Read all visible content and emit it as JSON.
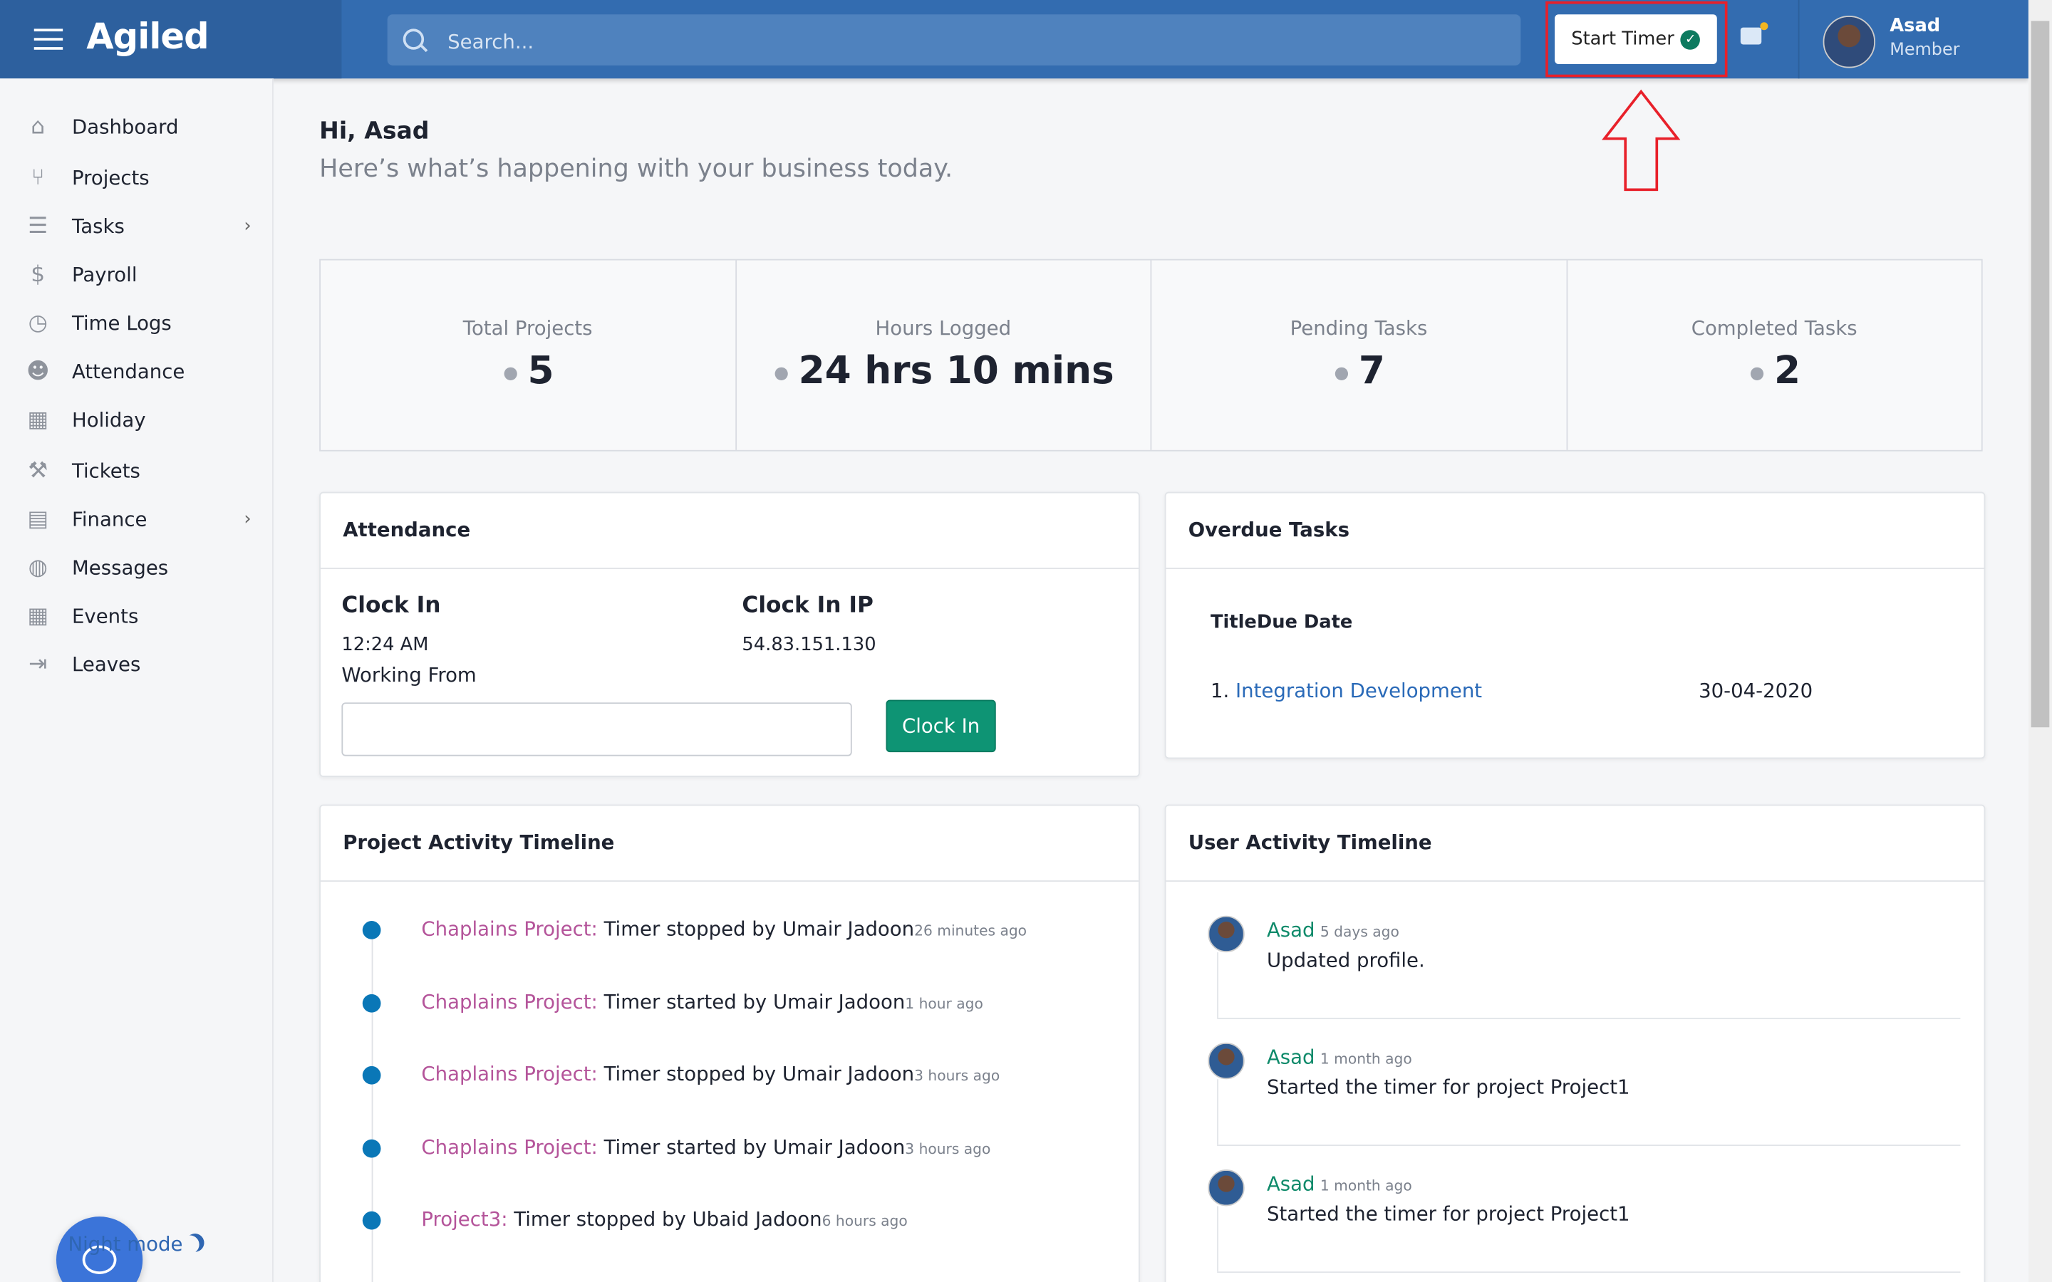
{
  "header": {
    "brand": "Agiled",
    "search_placeholder": "Search...",
    "start_timer": "Start Timer",
    "user_name": "Asad",
    "user_role": "Member"
  },
  "sidebar": {
    "items": [
      {
        "label": "Dashboard",
        "icon": "home-icon"
      },
      {
        "label": "Projects",
        "icon": "git-branch-icon"
      },
      {
        "label": "Tasks",
        "icon": "list-icon",
        "chevron": true
      },
      {
        "label": "Payroll",
        "icon": "dollar-icon"
      },
      {
        "label": "Time Logs",
        "icon": "clock-icon"
      },
      {
        "label": "Attendance",
        "icon": "user-check-icon"
      },
      {
        "label": "Holiday",
        "icon": "calendar-x-icon"
      },
      {
        "label": "Tickets",
        "icon": "wrench-icon"
      },
      {
        "label": "Finance",
        "icon": "file-invoice-icon",
        "chevron": true
      },
      {
        "label": "Messages",
        "icon": "comments-icon"
      },
      {
        "label": "Events",
        "icon": "calendar-icon"
      },
      {
        "label": "Leaves",
        "icon": "sign-out-icon"
      }
    ],
    "night_mode": "Night mode"
  },
  "greeting": {
    "title": "Hi, Asad",
    "subtitle": "Here’s what’s happening with your business today."
  },
  "stats": [
    {
      "label": "Total Projects",
      "value": "5"
    },
    {
      "label": "Hours Logged",
      "value": "24 hrs 10 mins"
    },
    {
      "label": "Pending Tasks",
      "value": "7"
    },
    {
      "label": "Completed Tasks",
      "value": "2"
    }
  ],
  "attendance": {
    "title": "Attendance",
    "clock_in_label": "Clock In",
    "clock_in_time": "12:24 AM",
    "ip_label": "Clock In IP",
    "ip": "54.83.151.130",
    "working_from": "Working From",
    "working_from_value": "",
    "button": "Clock In"
  },
  "overdue": {
    "title": "Overdue Tasks",
    "header": "TitleDue Date",
    "rows": [
      {
        "num": "1.",
        "title": "Integration Development",
        "due": "30-04-2020"
      }
    ]
  },
  "project_timeline": {
    "title": "Project Activity Timeline",
    "items": [
      {
        "project": "Chaplains Project:",
        "text": " Timer stopped by Umair Jadoon",
        "time": "26 minutes ago"
      },
      {
        "project": "Chaplains Project:",
        "text": " Timer started by Umair Jadoon",
        "time": "1 hour ago"
      },
      {
        "project": "Chaplains Project:",
        "text": " Timer stopped by Umair Jadoon",
        "time": "3 hours ago"
      },
      {
        "project": "Chaplains Project:",
        "text": " Timer started by Umair Jadoon",
        "time": "3 hours ago"
      },
      {
        "project": "Project3:",
        "text": " Timer stopped by Ubaid Jadoon",
        "time": "6 hours ago"
      }
    ]
  },
  "user_timeline": {
    "title": "User Activity Timeline",
    "items": [
      {
        "user": "Asad",
        "time": "5 days ago",
        "text": "Updated profile."
      },
      {
        "user": "Asad",
        "time": "1 month ago",
        "text": "Started the timer for project Project1"
      },
      {
        "user": "Asad",
        "time": "1 month ago",
        "text": "Started the timer for project Project1"
      }
    ]
  },
  "colors": {
    "header": "#336cb0",
    "accent_green": "#0e9474",
    "project_link": "#b4549a",
    "highlight": "#e8202a"
  }
}
